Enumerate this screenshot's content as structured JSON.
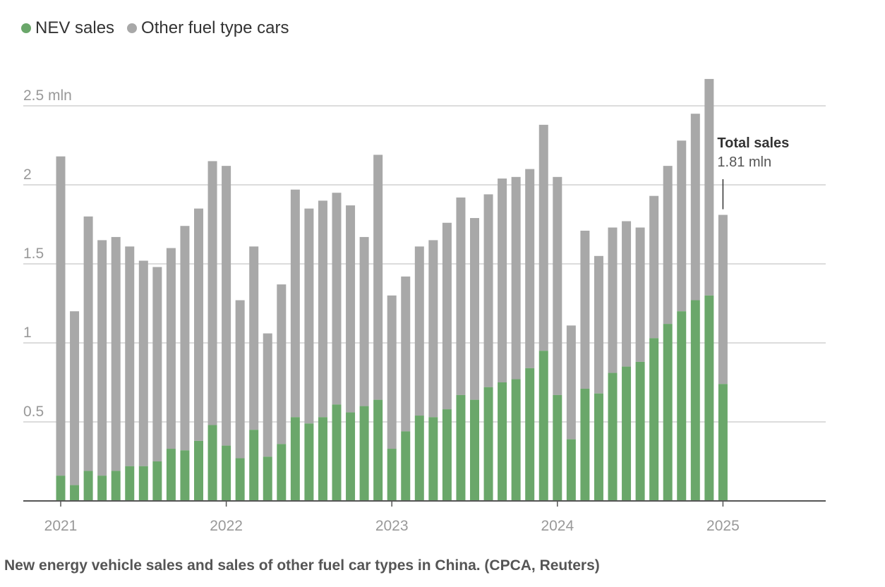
{
  "legend": [
    {
      "label": "NEV sales",
      "color": "#6aa76a"
    },
    {
      "label": "Other fuel type cars",
      "color": "#a8a8a8"
    }
  ],
  "caption": "New energy vehicle sales and sales of other fuel car types in China. (CPCA, Reuters)",
  "annotation": {
    "title": "Total sales",
    "value": "1.81 mln"
  },
  "chart_data": {
    "type": "bar",
    "stacked": true,
    "ylim": [
      0,
      2.5
    ],
    "yticks": [
      0.5,
      1,
      1.5,
      2,
      2.5
    ],
    "ytick_labels": [
      "0.5",
      "1",
      "1.5",
      "2",
      "2.5 mln"
    ],
    "xtick_labels": [
      "2021",
      "2022",
      "2023",
      "2024",
      "2025"
    ],
    "grid": true,
    "series": [
      {
        "name": "NEV sales",
        "color": "#6aa76a",
        "values": [
          0.16,
          0.1,
          0.19,
          0.16,
          0.19,
          0.22,
          0.22,
          0.25,
          0.33,
          0.32,
          0.38,
          0.48,
          0.35,
          0.27,
          0.45,
          0.28,
          0.36,
          0.53,
          0.49,
          0.53,
          0.61,
          0.56,
          0.6,
          0.64,
          0.33,
          0.44,
          0.54,
          0.53,
          0.58,
          0.67,
          0.64,
          0.72,
          0.75,
          0.77,
          0.84,
          0.95,
          0.67,
          0.39,
          0.71,
          0.68,
          0.81,
          0.85,
          0.88,
          1.03,
          1.12,
          1.2,
          1.27,
          1.3,
          0.74
        ]
      },
      {
        "name": "Other fuel type cars",
        "color": "#a8a8a8",
        "values": [
          2.02,
          1.1,
          1.61,
          1.49,
          1.48,
          1.39,
          1.3,
          1.23,
          1.27,
          1.42,
          1.47,
          1.67,
          1.77,
          1.0,
          1.16,
          0.78,
          1.01,
          1.44,
          1.36,
          1.37,
          1.34,
          1.31,
          1.07,
          1.55,
          0.97,
          0.98,
          1.07,
          1.12,
          1.18,
          1.25,
          1.15,
          1.22,
          1.29,
          1.28,
          1.26,
          1.43,
          1.38,
          0.72,
          1.0,
          0.87,
          0.92,
          0.92,
          0.85,
          0.9,
          1.0,
          1.08,
          1.18,
          1.37,
          1.07
        ]
      }
    ]
  }
}
